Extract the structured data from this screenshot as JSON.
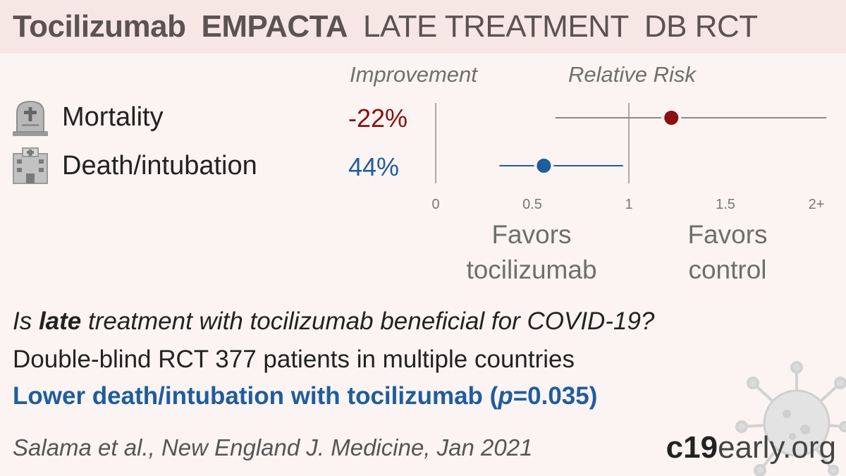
{
  "header": {
    "drug": "Tocilizumab",
    "study": "EMPACTA",
    "stage": "LATE TREATMENT",
    "design": "DB RCT"
  },
  "columns": {
    "improvement": "Improvement",
    "relative_risk": "Relative Risk"
  },
  "rows": [
    {
      "label": "Mortality",
      "value": "-22%",
      "icon": "tombstone-icon",
      "color": "#8b0f0f"
    },
    {
      "label": "Death/intubation",
      "value": "44%",
      "icon": "hospital-icon",
      "color": "#1f5d9c"
    }
  ],
  "favors": {
    "left_line1": "Favors",
    "left_line2": "tocilizumab",
    "right_line1": "Favors",
    "right_line2": "control"
  },
  "chart_data": {
    "type": "scatter",
    "title": "Relative Risk",
    "series": [
      {
        "name": "Mortality",
        "rr": 1.22,
        "ci": [
          0.62,
          2.0
        ],
        "ci_upper_truncated": true,
        "color": "#8b0f0f"
      },
      {
        "name": "Death/intubation",
        "rr": 0.56,
        "ci": [
          0.33,
          0.97
        ],
        "color": "#1f5d9c"
      }
    ],
    "xticks": [
      0,
      0.5,
      1,
      1.5,
      2
    ],
    "xtick_labels": [
      "0",
      "0.5",
      "1",
      "1.5",
      "2+"
    ],
    "xlim": [
      0,
      2
    ],
    "reference_line": 1
  },
  "summary": {
    "question_prefix": "Is ",
    "question_bold": "late",
    "question_suffix": " treatment with tocilizumab beneficial for COVID-19?",
    "design": "Double-blind RCT 377 patients in multiple countries",
    "conclusion_prefix": "Lower death/intubation with tocilizumab (",
    "conclusion_p": "p",
    "conclusion_suffix": "=0.035)"
  },
  "citation": "Salama et al., New England J. Medicine, Jan 2021",
  "brand": {
    "part1": "c19",
    "part2": "early.org"
  }
}
